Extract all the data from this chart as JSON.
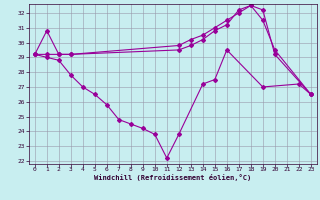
{
  "xlabel": "Windchill (Refroidissement éolien,°C)",
  "bg_color": "#c8eef0",
  "line_color": "#990099",
  "grid_color": "#9999aa",
  "ylim": [
    21.8,
    32.6
  ],
  "xlim": [
    -0.5,
    23.5
  ],
  "yticks": [
    22,
    23,
    24,
    25,
    26,
    27,
    28,
    29,
    30,
    31,
    32
  ],
  "xticks": [
    0,
    1,
    2,
    3,
    4,
    5,
    6,
    7,
    8,
    9,
    10,
    11,
    12,
    13,
    14,
    15,
    16,
    17,
    18,
    19,
    20,
    21,
    22,
    23
  ],
  "s1_x": [
    0,
    1,
    2,
    3,
    12,
    13,
    14,
    15,
    16,
    17,
    18,
    19,
    20,
    23
  ],
  "s1_y": [
    29.2,
    30.8,
    29.2,
    29.2,
    29.5,
    29.8,
    30.2,
    30.8,
    31.2,
    32.2,
    32.5,
    32.2,
    29.2,
    26.5
  ],
  "s2_x": [
    0,
    1,
    2,
    3,
    12,
    13,
    14,
    15,
    16,
    17,
    18,
    19,
    20,
    23
  ],
  "s2_y": [
    29.2,
    29.2,
    29.2,
    29.2,
    29.8,
    30.2,
    30.5,
    31.0,
    31.5,
    32.0,
    32.5,
    31.5,
    29.5,
    26.5
  ],
  "s3_x": [
    0,
    1,
    2,
    3,
    4,
    5,
    6,
    7,
    8,
    9,
    10,
    11,
    12,
    14,
    15,
    16,
    19,
    22,
    23
  ],
  "s3_y": [
    29.2,
    29.0,
    28.8,
    27.8,
    27.0,
    26.5,
    25.8,
    24.8,
    24.5,
    24.2,
    23.8,
    22.2,
    23.8,
    27.2,
    27.5,
    29.5,
    27.0,
    27.2,
    26.5
  ]
}
